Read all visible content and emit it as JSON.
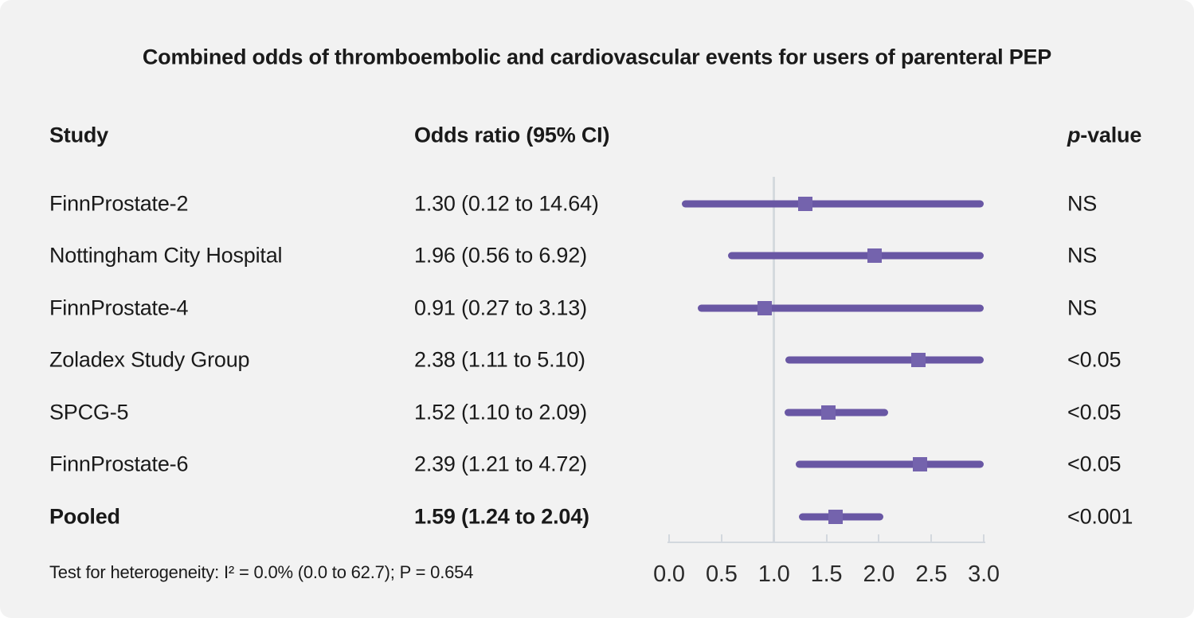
{
  "title": "Combined odds of thromboembolic and cardiovascular events for users of parenteral PEP",
  "columns": {
    "study": "Study",
    "odds_ratio": "Odds ratio (95% CI)",
    "p_value_italic": "p",
    "p_value_rest": "-value"
  },
  "footer": "Test for heterogeneity: I² = 0.0% (0.0 to 62.7); P = 0.654",
  "colors": {
    "background": "#f2f2f2",
    "text": "#1a1a1a",
    "ci_line": "#6957a4",
    "marker": "#7463ad",
    "reference_line": "#d5dade",
    "axis": "#d3d8de"
  },
  "chart_data": {
    "type": "forest",
    "title": "Combined odds of thromboembolic and cardiovascular events for users of parenteral PEP",
    "xlabel": "",
    "xlim": [
      0.0,
      3.0
    ],
    "tick_values": [
      0.0,
      0.5,
      1.0,
      1.5,
      2.0,
      2.5,
      3.0
    ],
    "tick_labels": [
      "0.0",
      "0.5",
      "1.0",
      "1.5",
      "2.0",
      "2.5",
      "3.0"
    ],
    "reference_value": 1.0,
    "rows": [
      {
        "study": "FinnProstate-2",
        "or_text": "1.30 (0.12 to 14.64)",
        "or": 1.3,
        "ci_low": 0.12,
        "ci_high": 14.64,
        "p": "NS",
        "bold": false
      },
      {
        "study": "Nottingham City Hospital",
        "or_text": "1.96 (0.56 to 6.92)",
        "or": 1.96,
        "ci_low": 0.56,
        "ci_high": 6.92,
        "p": "NS",
        "bold": false
      },
      {
        "study": "FinnProstate-4",
        "or_text": "0.91 (0.27 to 3.13)",
        "or": 0.91,
        "ci_low": 0.27,
        "ci_high": 3.13,
        "p": "NS",
        "bold": false
      },
      {
        "study": "Zoladex Study Group",
        "or_text": "2.38 (1.11 to 5.10)",
        "or": 2.38,
        "ci_low": 1.11,
        "ci_high": 5.1,
        "p": "<0.05",
        "bold": false
      },
      {
        "study": "SPCG-5",
        "or_text": "1.52 (1.10 to 2.09)",
        "or": 1.52,
        "ci_low": 1.1,
        "ci_high": 2.09,
        "p": "<0.05",
        "bold": false
      },
      {
        "study": "FinnProstate-6",
        "or_text": "2.39 (1.21 to 4.72)",
        "or": 2.39,
        "ci_low": 1.21,
        "ci_high": 4.72,
        "p": "<0.05",
        "bold": false
      },
      {
        "study": "Pooled",
        "or_text": "1.59 (1.24 to 2.04)",
        "or": 1.59,
        "ci_low": 1.24,
        "ci_high": 2.04,
        "p": "<0.001",
        "bold": true
      }
    ],
    "heterogeneity_note": "Test for heterogeneity: I² = 0.0% (0.0 to 62.7); P = 0.654"
  }
}
